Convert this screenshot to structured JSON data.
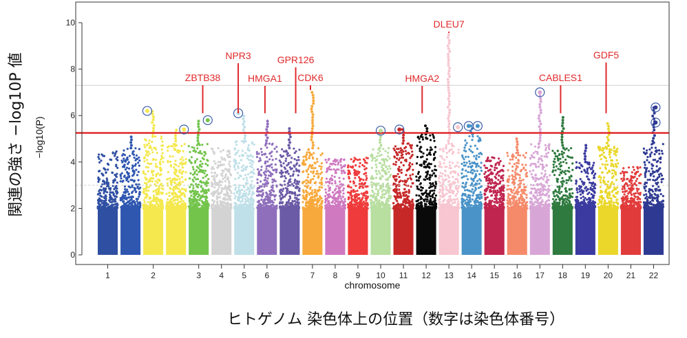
{
  "chart_data": {
    "type": "scatter",
    "subtype": "manhattan",
    "xlabel": "chromosome",
    "ylabel": "−log10(P)",
    "outer_ylabel": "関連の強さ −log10P 値",
    "outer_xlabel": "ヒトゲノム 染色体上の位置（数字は染色体番号）",
    "ylim": [
      0,
      10.5
    ],
    "yticks": [
      0,
      2,
      4,
      6,
      8,
      10
    ],
    "grid": false,
    "significance_threshold": 5.25,
    "reference_lines": [
      7.3,
      3.0
    ],
    "chromosomes": [
      {
        "name": "1",
        "color": "#2f4fa3",
        "top": 4.5,
        "peak": 4.5
      },
      {
        "name": "",
        "color": "#2f57b0",
        "top": 4.6,
        "peak": 5.1
      },
      {
        "name": "2",
        "color": "#f4e84e",
        "top": 5.1,
        "peak": 6.2
      },
      {
        "name": "",
        "color": "#f4e84e",
        "top": 4.9,
        "peak": 5.4
      },
      {
        "name": "3",
        "color": "#73c44b",
        "top": 4.8,
        "peak": 5.8
      },
      {
        "name": "4",
        "color": "#d3d3d3",
        "top": 4.6,
        "peak": 4.6
      },
      {
        "name": "5",
        "color": "#bfe0e8",
        "top": 4.9,
        "peak": 6.1
      },
      {
        "name": "6",
        "color": "#8f6fbc",
        "top": 4.8,
        "peak": 5.8
      },
      {
        "name": "",
        "color": "#6b5aa6",
        "top": 4.6,
        "peak": 5.5
      },
      {
        "name": "7",
        "color": "#f7a93b",
        "top": 4.6,
        "peak": 7.1
      },
      {
        "name": "8",
        "color": "#cf79c1",
        "top": 4.2,
        "peak": 4.2
      },
      {
        "name": "9",
        "color": "#ef3b3b",
        "top": 4.2,
        "peak": 4.2
      },
      {
        "name": "10",
        "color": "#b8dea0",
        "top": 4.6,
        "peak": 5.4
      },
      {
        "name": "11",
        "color": "#c62828",
        "top": 4.8,
        "peak": 5.4
      },
      {
        "name": "12",
        "color": "#0a0a0a",
        "top": 5.2,
        "peak": 5.6
      },
      {
        "name": "13",
        "color": "#f7c6d0",
        "top": 4.8,
        "peak": 9.5
      },
      {
        "name": "14",
        "color": "#4a93c8",
        "top": 5.2,
        "peak": 5.6
      },
      {
        "name": "15",
        "color": "#c0254f",
        "top": 4.2,
        "peak": 4.2
      },
      {
        "name": "16",
        "color": "#f58a6a",
        "top": 4.4,
        "peak": 5.1
      },
      {
        "name": "17",
        "color": "#d8a6d6",
        "top": 4.8,
        "peak": 7.0
      },
      {
        "name": "18",
        "color": "#2f7a3f",
        "top": 4.6,
        "peak": 6.0
      },
      {
        "name": "19",
        "color": "#3a3aa0",
        "top": 4.0,
        "peak": 4.8
      },
      {
        "name": "20",
        "color": "#ead72a",
        "top": 4.7,
        "peak": 5.7
      },
      {
        "name": "21",
        "color": "#e23b3b",
        "top": 3.8,
        "peak": 3.8
      },
      {
        "name": "22",
        "color": "#2e3a92",
        "top": 4.9,
        "peak": 6.4
      }
    ],
    "annotations": [
      {
        "gene": "ZBTB38",
        "chrom_index": 4,
        "pos": 0.7,
        "value": 5.8
      },
      {
        "gene": "NPR3",
        "chrom_index": 6,
        "pos": 0.2,
        "value": 6.1
      },
      {
        "gene": "HMGA1",
        "chrom_index": 7,
        "pos": 0.4,
        "value": 5.7
      },
      {
        "gene": "GPR126",
        "chrom_index": 8,
        "pos": 0.8,
        "value": 5.5
      },
      {
        "gene": "CDK6",
        "chrom_index": 9,
        "pos": 0.4,
        "value": 7.1
      },
      {
        "gene": "HMGA2",
        "chrom_index": 14,
        "pos": 0.3,
        "value": 5.6
      },
      {
        "gene": "DLEU7",
        "chrom_index": 15,
        "pos": 0.5,
        "value": 9.5
      },
      {
        "gene": "CABLES1",
        "chrom_index": 20,
        "pos": 0.4,
        "value": 6.0
      },
      {
        "gene": "GDF5",
        "chrom_index": 22,
        "pos": 0.4,
        "value": 5.7
      }
    ],
    "circled_points": [
      {
        "chrom_index": 2,
        "pos": 0.2,
        "value": 6.2
      },
      {
        "chrom_index": 3,
        "pos": 0.9,
        "value": 5.4
      },
      {
        "chrom_index": 4,
        "pos": 0.95,
        "value": 5.8
      },
      {
        "chrom_index": 6,
        "pos": 0.2,
        "value": 6.1
      },
      {
        "chrom_index": 12,
        "pos": 0.5,
        "value": 5.35
      },
      {
        "chrom_index": 13,
        "pos": 0.3,
        "value": 5.4
      },
      {
        "chrom_index": 15,
        "pos": 0.95,
        "value": 5.5
      },
      {
        "chrom_index": 16,
        "pos": 0.35,
        "value": 5.55
      },
      {
        "chrom_index": 16,
        "pos": 0.8,
        "value": 5.55
      },
      {
        "chrom_index": 19,
        "pos": 0.5,
        "value": 7.0
      },
      {
        "chrom_index": 24,
        "pos": 0.6,
        "value": 6.35
      },
      {
        "chrom_index": 24,
        "pos": 0.6,
        "value": 5.7
      }
    ]
  }
}
